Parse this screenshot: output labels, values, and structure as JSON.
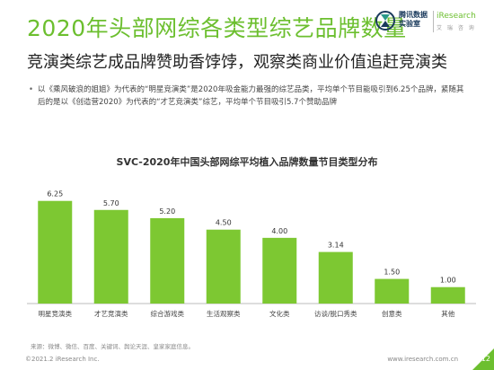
{
  "slide": {
    "title": "2020年头部网综各类型综艺品牌数量",
    "subtitle": "竞演类综艺成品牌赞助香饽饽，观察类商业价值追赶竞演类",
    "bullet": "以《乘风破浪的姐姐》为代表的“明星竞演类”是2020年吸金能力最强的综艺品类，平均单个节目能吸引到6.25个品牌，紧随其后的是以《创造营2020》为代表的“才艺竞演类”综艺，平均单个节目吸引5.7个赞助品牌"
  },
  "logo": {
    "cn_line1": "腾讯数据",
    "cn_line2": "实验室",
    "ir": "iResearch",
    "ir_sub": "艾 瑞 咨 询"
  },
  "chart_data": {
    "type": "bar",
    "title": "SVC-2020年中国头部网综平均植入品牌数量节目类型分布",
    "categories": [
      "明星竞演类",
      "才艺竞演类",
      "综合游戏类",
      "生活观察类",
      "文化类",
      "访谈/脱口秀类",
      "创意类",
      "其他"
    ],
    "values": [
      6.25,
      5.7,
      5.2,
      4.5,
      4.0,
      3.14,
      1.5,
      1.0
    ],
    "value_labels": [
      "6.25",
      "5.70",
      "5.20",
      "4.50",
      "4.00",
      "3.14",
      "1.50",
      "1.00"
    ],
    "ylim": [
      0,
      7
    ],
    "grid": false,
    "bar_color": "#7dc832"
  },
  "footer": {
    "source": "来源：微博、微信、百度、关键词、舆论天涯、皇家家庭信息。",
    "copyright": "©2021.2 iResearch Inc.",
    "url": "www.iresearch.com.cn",
    "page": "12"
  },
  "colors": {
    "accent": "#6cbf2f",
    "bar": "#7dc832"
  }
}
